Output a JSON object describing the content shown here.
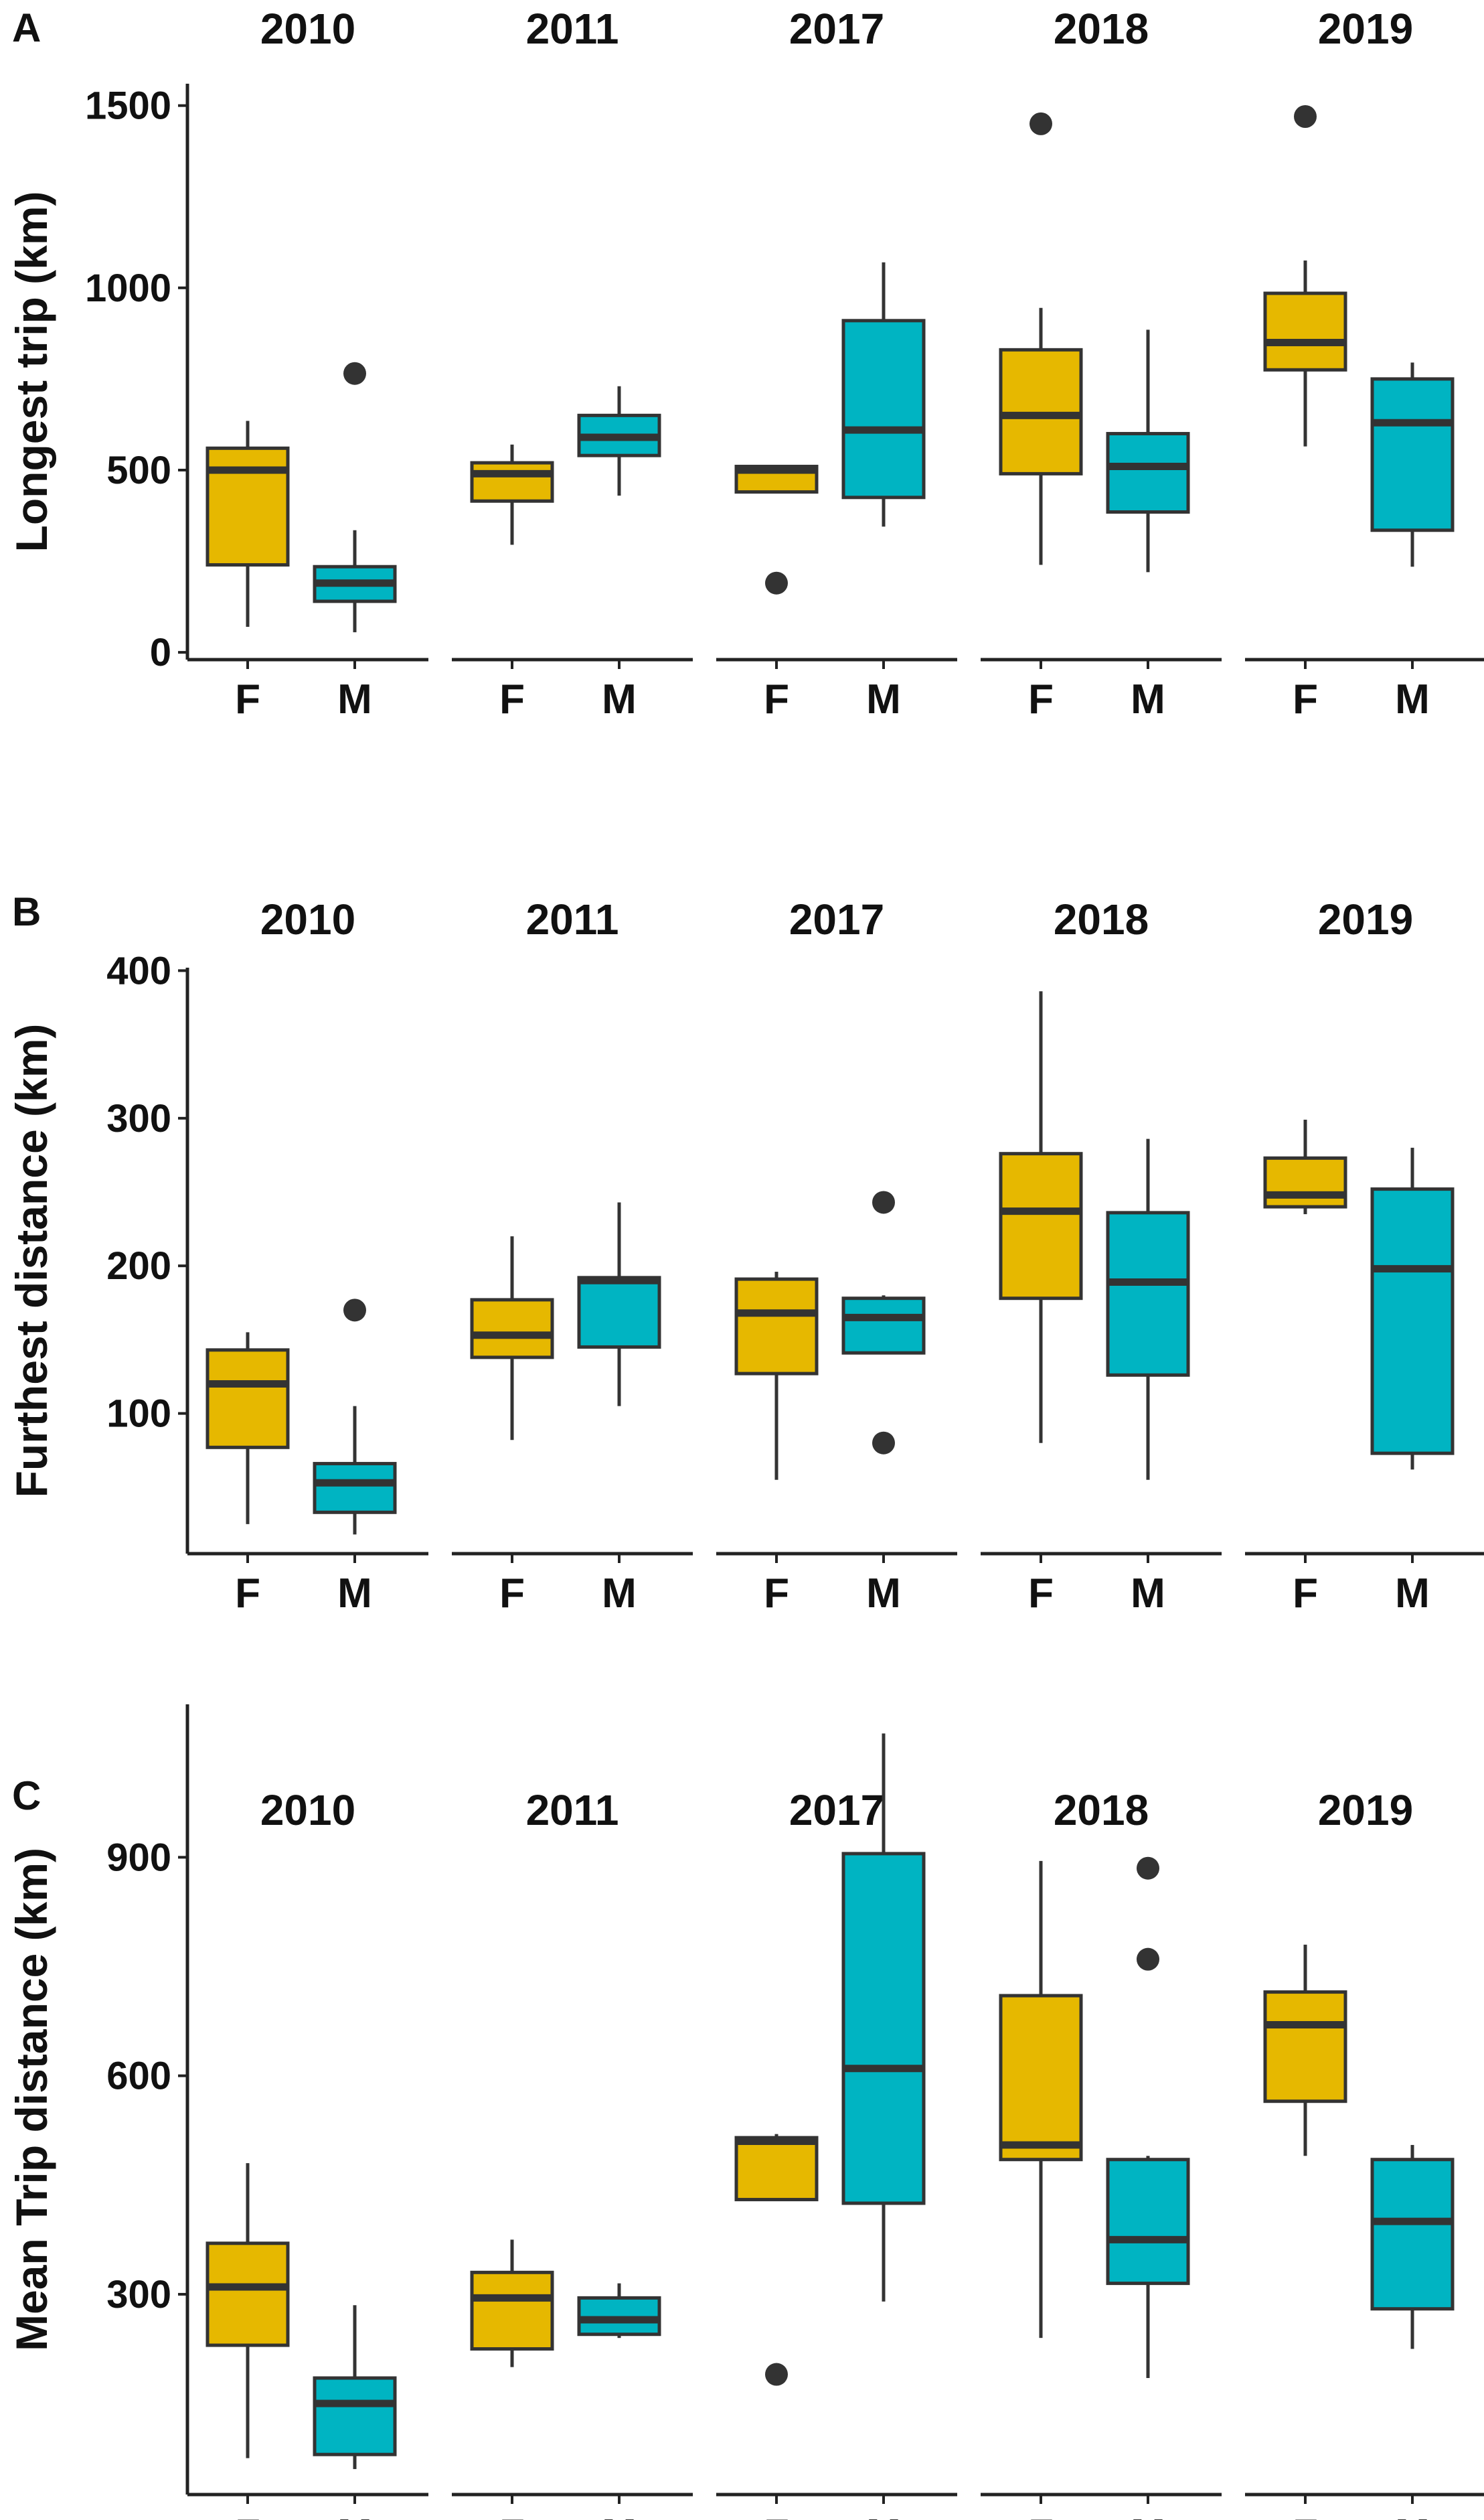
{
  "figure": {
    "colors": {
      "F": "#E6B800",
      "M": "#00B4C2",
      "outline": "#333333"
    }
  },
  "chart_data": [
    {
      "type": "box",
      "panel_label": "A",
      "ylabel": "Longest trip (km)",
      "ylim": [
        -20,
        1560
      ],
      "yticks": [
        0,
        500,
        1000,
        1500
      ],
      "groups": [
        "F",
        "M"
      ],
      "facets": [
        {
          "title": "2010",
          "boxes": [
            {
              "group": "F",
              "low": 70,
              "q1": 240,
              "median": 500,
              "q3": 560,
              "high": 635,
              "outliers": []
            },
            {
              "group": "M",
              "low": 55,
              "q1": 140,
              "median": 190,
              "q3": 235,
              "high": 335,
              "outliers": [
                765
              ]
            }
          ]
        },
        {
          "title": "2011",
          "boxes": [
            {
              "group": "F",
              "low": 295,
              "q1": 415,
              "median": 490,
              "q3": 520,
              "high": 570,
              "outliers": []
            },
            {
              "group": "M",
              "low": 430,
              "q1": 540,
              "median": 590,
              "q3": 650,
              "high": 730,
              "outliers": []
            }
          ]
        },
        {
          "title": "2017",
          "boxes": [
            {
              "group": "F",
              "low": 440,
              "q1": 440,
              "median": 500,
              "q3": 510,
              "high": 510,
              "outliers": [
                190
              ]
            },
            {
              "group": "M",
              "low": 345,
              "q1": 425,
              "median": 610,
              "q3": 910,
              "high": 1070,
              "outliers": []
            }
          ]
        },
        {
          "title": "2018",
          "boxes": [
            {
              "group": "F",
              "low": 240,
              "q1": 490,
              "median": 650,
              "q3": 830,
              "high": 945,
              "outliers": [
                1450
              ]
            },
            {
              "group": "M",
              "low": 220,
              "q1": 385,
              "median": 510,
              "q3": 600,
              "high": 885,
              "outliers": []
            }
          ]
        },
        {
          "title": "2019",
          "boxes": [
            {
              "group": "F",
              "low": 565,
              "q1": 775,
              "median": 850,
              "q3": 985,
              "high": 1075,
              "outliers": [
                1470
              ]
            },
            {
              "group": "M",
              "low": 235,
              "q1": 335,
              "median": 630,
              "q3": 750,
              "high": 795,
              "outliers": []
            }
          ]
        }
      ]
    },
    {
      "type": "box",
      "panel_label": "B",
      "ylabel": "Furthest distance (km)",
      "ylim": [
        5,
        402
      ],
      "yticks": [
        100,
        200,
        300,
        400
      ],
      "groups": [
        "F",
        "M"
      ],
      "facets": [
        {
          "title": "2010",
          "boxes": [
            {
              "group": "F",
              "low": 25,
              "q1": 77,
              "median": 120,
              "q3": 143,
              "high": 155,
              "outliers": []
            },
            {
              "group": "M",
              "low": 18,
              "q1": 33,
              "median": 53,
              "q3": 66,
              "high": 105,
              "outliers": [
                170
              ]
            }
          ]
        },
        {
          "title": "2011",
          "boxes": [
            {
              "group": "F",
              "low": 82,
              "q1": 138,
              "median": 153,
              "q3": 177,
              "high": 220,
              "outliers": []
            },
            {
              "group": "M",
              "low": 105,
              "q1": 145,
              "median": 190,
              "q3": 192,
              "high": 243,
              "outliers": []
            }
          ]
        },
        {
          "title": "2017",
          "boxes": [
            {
              "group": "F",
              "low": 55,
              "q1": 127,
              "median": 168,
              "q3": 191,
              "high": 196,
              "outliers": []
            },
            {
              "group": "M",
              "low": 140,
              "q1": 141,
              "median": 165,
              "q3": 178,
              "high": 180,
              "outliers": [
                243,
                80
              ]
            }
          ]
        },
        {
          "title": "2018",
          "boxes": [
            {
              "group": "F",
              "low": 80,
              "q1": 178,
              "median": 237,
              "q3": 276,
              "high": 386,
              "outliers": []
            },
            {
              "group": "M",
              "low": 55,
              "q1": 126,
              "median": 189,
              "q3": 236,
              "high": 286,
              "outliers": []
            }
          ]
        },
        {
          "title": "2019",
          "boxes": [
            {
              "group": "F",
              "low": 235,
              "q1": 240,
              "median": 248,
              "q3": 273,
              "high": 299,
              "outliers": []
            },
            {
              "group": "M",
              "low": 62,
              "q1": 73,
              "median": 198,
              "q3": 252,
              "high": 280,
              "outliers": []
            }
          ]
        }
      ]
    },
    {
      "type": "box",
      "panel_label": "C",
      "ylabel": "Mean Trip distance (km)",
      "ylim": [
        25,
        1110
      ],
      "yticks": [
        300,
        600,
        900
      ],
      "groups": [
        "F",
        "M"
      ],
      "facets": [
        {
          "title": "2010",
          "boxes": [
            {
              "group": "F",
              "low": 75,
              "q1": 230,
              "median": 310,
              "q3": 370,
              "high": 480,
              "outliers": []
            },
            {
              "group": "M",
              "low": 60,
              "q1": 80,
              "median": 150,
              "q3": 185,
              "high": 285,
              "outliers": []
            }
          ]
        },
        {
          "title": "2011",
          "boxes": [
            {
              "group": "F",
              "low": 200,
              "q1": 225,
              "median": 295,
              "q3": 330,
              "high": 375,
              "outliers": []
            },
            {
              "group": "M",
              "low": 240,
              "q1": 245,
              "median": 265,
              "q3": 295,
              "high": 315,
              "outliers": []
            }
          ]
        },
        {
          "title": "2017",
          "boxes": [
            {
              "group": "F",
              "low": 430,
              "q1": 430,
              "median": 510,
              "q3": 515,
              "high": 520,
              "outliers": [
                190
              ]
            },
            {
              "group": "M",
              "low": 290,
              "q1": 425,
              "median": 610,
              "q3": 905,
              "high": 1070,
              "outliers": []
            }
          ]
        },
        {
          "title": "2018",
          "boxes": [
            {
              "group": "F",
              "low": 240,
              "q1": 485,
              "median": 505,
              "q3": 710,
              "high": 895,
              "outliers": []
            },
            {
              "group": "M",
              "low": 185,
              "q1": 315,
              "median": 375,
              "q3": 485,
              "high": 490,
              "outliers": [
                885,
                760
              ]
            }
          ]
        },
        {
          "title": "2019",
          "boxes": [
            {
              "group": "F",
              "low": 490,
              "q1": 565,
              "median": 670,
              "q3": 715,
              "high": 780,
              "outliers": []
            },
            {
              "group": "M",
              "low": 225,
              "q1": 280,
              "median": 400,
              "q3": 485,
              "high": 505,
              "outliers": []
            }
          ]
        }
      ]
    }
  ]
}
